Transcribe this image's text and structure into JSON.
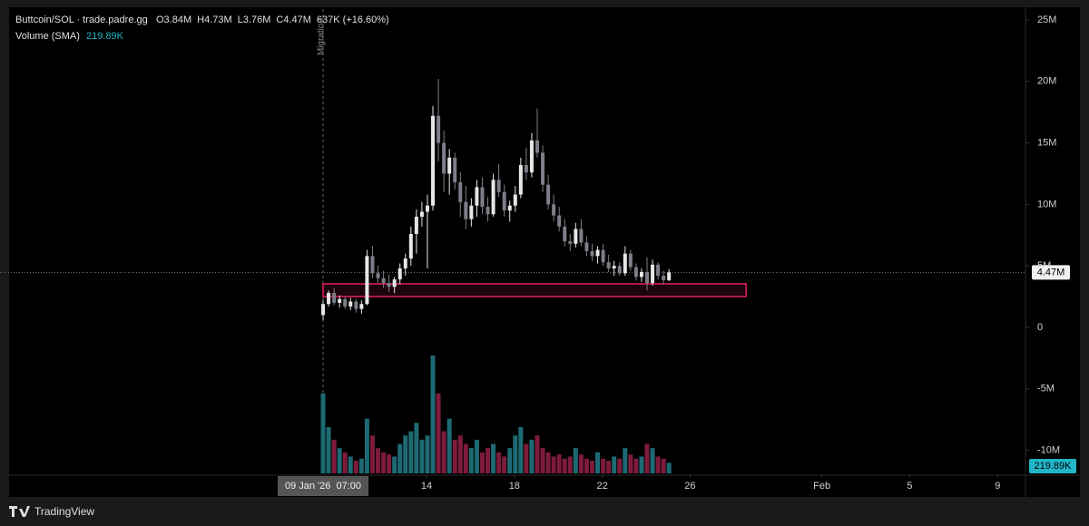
{
  "chart_data": {
    "type": "candlestick",
    "title": "Buttcoin/SOL · trade.padre.gg",
    "legend": [
      "O3.84M",
      "H4.73M",
      "L3.76M",
      "C4.47M",
      "637K (+16.60%)"
    ],
    "volume_title": "Volume (SMA)",
    "volume_sma_label": "219.89K",
    "branding": "TradingView",
    "up_color": "#e6e6e6",
    "down_color": "#7c7f88",
    "volume_up_color": "#1d6a73",
    "volume_down_color": "#7e1b3c",
    "x": [
      9.29,
      9.54,
      9.79,
      10.04,
      10.29,
      10.54,
      10.79,
      11.04,
      11.29,
      11.54,
      11.79,
      12.04,
      12.29,
      12.54,
      12.79,
      13.04,
      13.29,
      13.54,
      13.79,
      14.04,
      14.29,
      14.54,
      14.79,
      15.04,
      15.29,
      15.54,
      15.79,
      16.04,
      16.29,
      16.54,
      16.79,
      17.04,
      17.29,
      17.54,
      17.79,
      18.04,
      18.29,
      18.54,
      18.79,
      19.04,
      19.29,
      19.54,
      19.79,
      20.04,
      20.29,
      20.54,
      20.79,
      21.04,
      21.29,
      21.54,
      21.79,
      22.04,
      22.29,
      22.54,
      22.79,
      23.04,
      23.29,
      23.54,
      23.79,
      24.04,
      24.29,
      24.54,
      24.79,
      25.04
    ],
    "open": [
      1.0,
      1.9,
      2.8,
      2.0,
      2.3,
      1.7,
      2.1,
      1.5,
      1.9,
      5.8,
      4.4,
      4.0,
      3.6,
      3.3,
      3.9,
      4.8,
      5.6,
      7.6,
      9.0,
      9.4,
      9.9,
      17.2,
      15.0,
      12.5,
      13.8,
      11.8,
      10.2,
      8.8,
      9.9,
      11.4,
      9.8,
      9.2,
      12.0,
      11.0,
      9.5,
      9.9,
      10.8,
      13.2,
      12.6,
      15.2,
      14.2,
      11.6,
      10.0,
      9.1,
      8.2,
      7.0,
      6.8,
      8.0,
      6.9,
      6.2,
      5.8,
      6.3,
      5.3,
      4.8,
      5.0,
      4.4,
      6.0,
      4.9,
      4.1,
      4.5,
      3.6,
      5.1,
      4.2,
      3.84
    ],
    "high": [
      2.2,
      3.0,
      3.2,
      2.6,
      2.5,
      2.4,
      2.3,
      2.2,
      6.3,
      6.6,
      5.0,
      4.6,
      4.3,
      4.1,
      5.2,
      6.0,
      8.2,
      9.6,
      10.2,
      10.8,
      18.0,
      20.2,
      16.0,
      14.5,
      14.2,
      12.6,
      11.5,
      10.5,
      12.0,
      12.2,
      10.6,
      12.5,
      13.3,
      11.6,
      10.3,
      11.5,
      13.8,
      14.6,
      15.8,
      17.8,
      14.8,
      12.4,
      10.8,
      9.8,
      8.8,
      7.6,
      8.5,
      8.8,
      7.4,
      6.8,
      6.6,
      6.8,
      5.9,
      5.4,
      5.3,
      6.6,
      6.3,
      5.2,
      4.8,
      5.7,
      5.5,
      5.3,
      4.6,
      4.73
    ],
    "low": [
      0.6,
      1.7,
      1.8,
      1.6,
      1.5,
      1.4,
      1.2,
      1.1,
      1.8,
      4.0,
      3.6,
      3.2,
      2.9,
      2.8,
      3.5,
      4.2,
      5.0,
      6.0,
      8.2,
      4.8,
      9.5,
      13.5,
      11.0,
      10.8,
      11.2,
      9.0,
      8.0,
      8.2,
      9.0,
      9.2,
      8.6,
      9.0,
      10.6,
      9.0,
      8.6,
      9.4,
      10.5,
      12.0,
      12.2,
      13.8,
      11.0,
      9.6,
      8.6,
      7.8,
      6.6,
      6.2,
      6.5,
      6.6,
      5.8,
      5.4,
      5.2,
      5.0,
      4.5,
      4.2,
      4.2,
      4.2,
      4.6,
      3.8,
      3.7,
      3.0,
      3.4,
      3.9,
      3.5,
      3.76
    ],
    "close": [
      1.9,
      2.8,
      2.0,
      2.3,
      1.7,
      2.1,
      1.5,
      1.9,
      5.8,
      4.4,
      4.0,
      3.6,
      3.3,
      3.9,
      4.8,
      5.6,
      7.6,
      9.0,
      9.4,
      9.9,
      17.2,
      15.0,
      12.5,
      13.8,
      11.8,
      10.2,
      8.8,
      9.9,
      11.4,
      9.8,
      9.2,
      12.0,
      11.0,
      9.5,
      9.9,
      10.8,
      13.2,
      12.6,
      15.2,
      14.2,
      11.6,
      10.0,
      9.1,
      8.2,
      7.0,
      6.8,
      8.0,
      6.9,
      6.2,
      5.8,
      6.3,
      5.3,
      4.8,
      5.0,
      4.4,
      6.0,
      4.9,
      4.1,
      4.5,
      3.6,
      5.1,
      4.2,
      3.84,
      4.47
    ],
    "volume": [
      1900,
      1100,
      800,
      600,
      500,
      400,
      300,
      350,
      1300,
      900,
      600,
      500,
      450,
      400,
      700,
      900,
      1000,
      1200,
      800,
      900,
      2800,
      1900,
      1000,
      1300,
      800,
      900,
      700,
      600,
      800,
      500,
      600,
      700,
      500,
      400,
      600,
      900,
      1100,
      700,
      800,
      900,
      600,
      500,
      400,
      450,
      350,
      400,
      600,
      450,
      350,
      300,
      500,
      350,
      300,
      400,
      350,
      600,
      450,
      350,
      400,
      700,
      600,
      400,
      350,
      250
    ],
    "xlim": [
      -5.42,
      41.27
    ],
    "xticks": [
      14,
      18,
      22,
      26,
      {
        "value": 32,
        "label": "Feb"
      },
      {
        "value": 36,
        "label": "5"
      },
      {
        "value": 40,
        "label": "9"
      }
    ],
    "ylim": [
      -11.87,
      25.88
    ],
    "yticks": [
      {
        "value": 25,
        "label": "25M"
      },
      {
        "value": 20,
        "label": "20M"
      },
      {
        "value": 15,
        "label": "15M"
      },
      {
        "value": 10,
        "label": "10M"
      },
      {
        "value": 5,
        "label": "5M"
      },
      0,
      {
        "value": -5,
        "label": "-5M"
      },
      {
        "value": -10,
        "label": "-10M"
      }
    ],
    "last_price": {
      "value": 4.47,
      "label": "4.47M"
    },
    "crosshair_x": {
      "value": 9.29,
      "label": "09 Jan '26  07:00"
    },
    "marker": {
      "x": 9.29,
      "label": "Migration"
    },
    "zone": {
      "x": [
        9.29,
        28.55
      ],
      "y": [
        2.51,
        3.54
      ],
      "color": "#e91e63"
    }
  }
}
